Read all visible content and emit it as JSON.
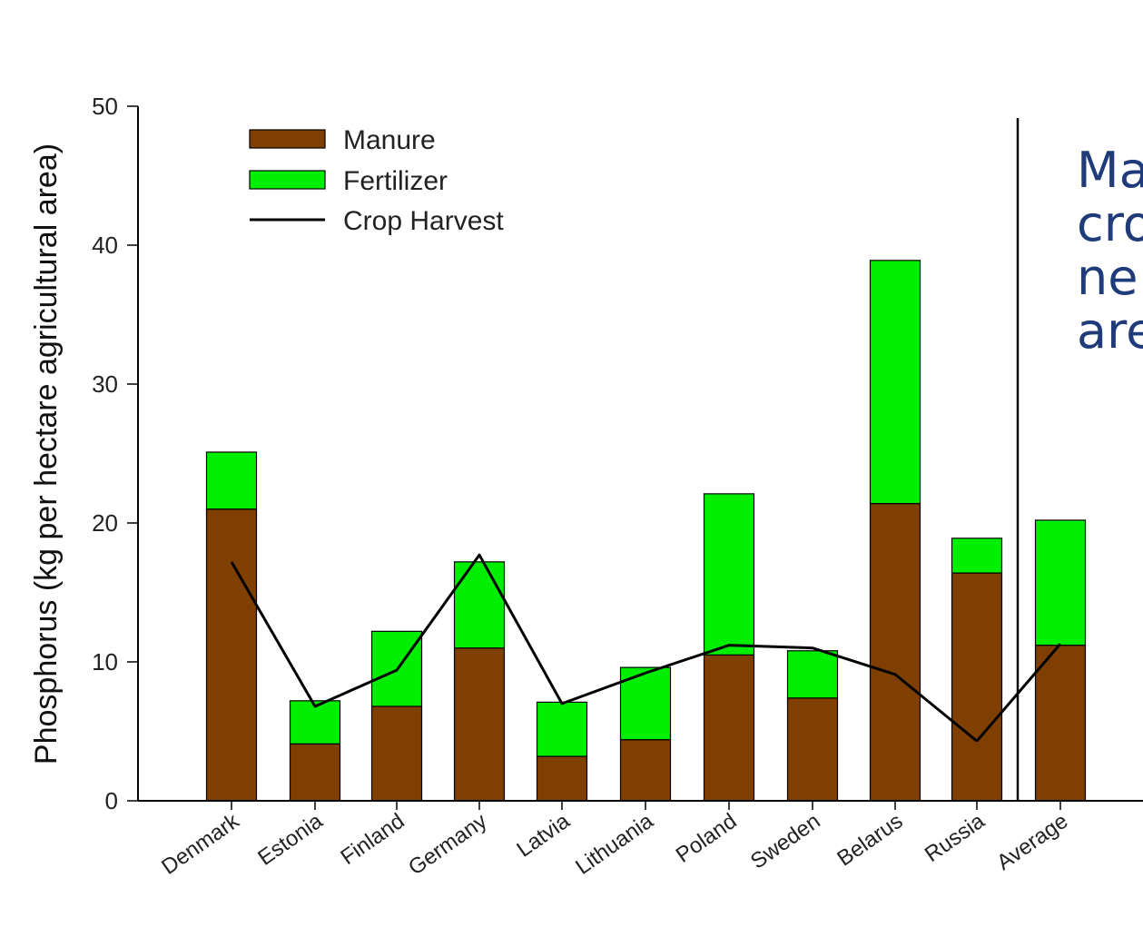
{
  "chart_data": {
    "type": "bar",
    "stacked": true,
    "categories": [
      "Denmark",
      "Estonia",
      "Finland",
      "Germany",
      "Latvia",
      "Lithuania",
      "Poland",
      "Sweden",
      "Belarus",
      "Russia",
      "Average"
    ],
    "series": [
      {
        "name": "Manure",
        "type": "bar",
        "color": "#7f3f00",
        "values": [
          21.0,
          4.1,
          6.8,
          11.0,
          3.2,
          4.4,
          10.5,
          7.4,
          21.4,
          16.4,
          11.2
        ]
      },
      {
        "name": "Fertilizer",
        "type": "bar",
        "color": "#00ee00",
        "values": [
          4.1,
          3.1,
          5.4,
          6.2,
          3.9,
          5.2,
          11.6,
          3.4,
          17.5,
          2.5,
          9.0
        ]
      },
      {
        "name": "Crop Harvest",
        "type": "line",
        "color": "#000000",
        "values": [
          17.2,
          6.8,
          9.4,
          17.7,
          7.0,
          9.2,
          11.2,
          11.0,
          9.1,
          4.3,
          11.3
        ]
      }
    ],
    "ylabel": "Phosphorus (kg per hectare agricultural area)",
    "ylim": [
      0,
      50
    ],
    "yticks": [
      0,
      10,
      20,
      30,
      40,
      50
    ],
    "legend": "top-left",
    "grid": false
  },
  "overlay_text": [
    "Ma",
    "cro",
    "ne",
    "are"
  ]
}
